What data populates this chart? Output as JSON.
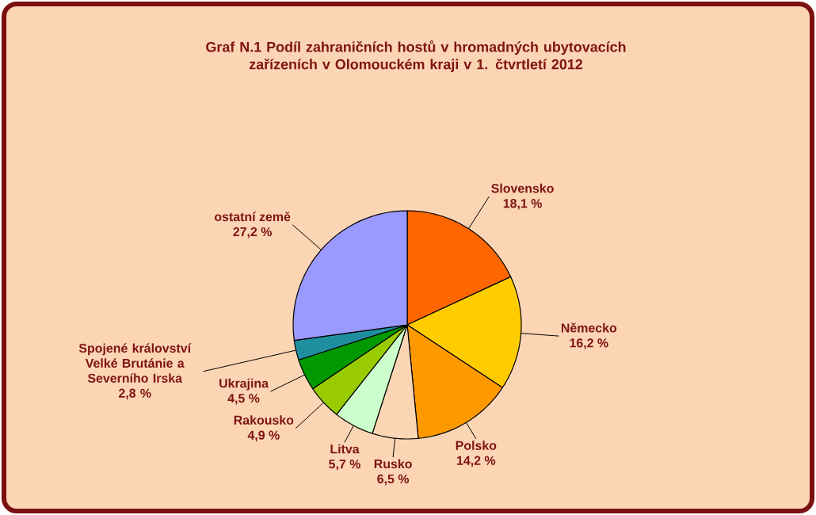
{
  "chart_data": {
    "type": "pie",
    "title": "Graf N.1  Podíl zahraničních hostů v hromadných ubytovacích zařízeních v Olomouckém kraji v 1. čtvrtletí  2012",
    "categories": [
      "Slovensko",
      "Německo",
      "Polsko",
      "Rusko",
      "Litva",
      "Rakousko",
      "Ukrajina",
      "Spojené království Velké Brutánie a Severního Irska",
      "ostatní země"
    ],
    "values": [
      18.1,
      16.2,
      14.2,
      6.5,
      5.7,
      4.9,
      4.5,
      2.8,
      27.2
    ],
    "value_labels": [
      "18,1 %",
      "16,2 %",
      "14,2 %",
      "6,5 %",
      "5,7 %",
      "4,9 %",
      "4,5 %",
      "2,8 %",
      "27,2 %"
    ],
    "colors": [
      "#ff6600",
      "#ffcc00",
      "#ff9900",
      "#fcd5b5",
      "#ccffcc",
      "#99cc00",
      "#009900",
      "#1f8f9f",
      "#9999ff"
    ]
  }
}
